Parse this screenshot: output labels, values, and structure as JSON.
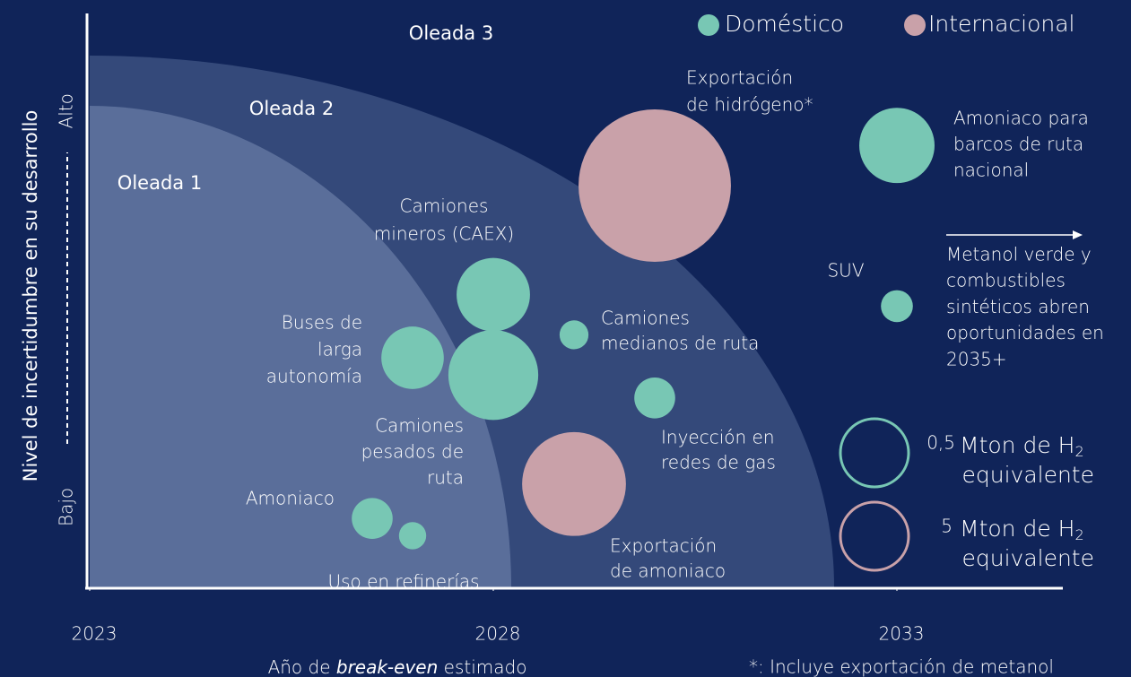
{
  "chart_data": {
    "type": "bubble",
    "waves": [
      "Oleada 1",
      "Oleada 2",
      "Oleada 3"
    ],
    "xlabel": [
      "Año de ",
      "break-even",
      " estimado"
    ],
    "ylabel": "Nivel de incertidumbre en su desarrollo",
    "xlim": [
      2023,
      2035.5
    ],
    "xticks": [
      2023,
      2028,
      2033
    ],
    "ylim": [
      0,
      1
    ],
    "yticks": [
      {
        "value": 0.14,
        "label": "Bajo"
      },
      {
        "value": 0.83,
        "label": "Alto"
      }
    ],
    "series": [
      {
        "name": "Doméstico",
        "color": "#78c7b4",
        "x": [
          2033,
          2033,
          2028,
          2027,
          2028,
          2029,
          2030,
          2026.5,
          2027
        ],
        "y": [
          0.77,
          0.49,
          0.51,
          0.4,
          0.37,
          0.44,
          0.33,
          0.12,
          0.09
        ],
        "sizes": [
          0.61,
          0.11,
          0.58,
          0.42,
          0.87,
          0.09,
          0.18,
          0.18,
          0.08
        ],
        "labels": [
          [
            "Amoniaco para",
            "barcos de ruta",
            "nacional"
          ],
          [
            "SUV"
          ],
          [
            "Camiones",
            "mineros (CAEX)"
          ],
          [
            "Buses de",
            "larga",
            "autonomía"
          ],
          [
            "Camiones",
            "pesados de",
            "ruta"
          ],
          [
            "Camiones",
            "medianos de ruta"
          ],
          [
            "Inyección en",
            "redes de gas"
          ],
          [
            "Amoniaco"
          ],
          [
            "Uso en refinerías"
          ]
        ]
      },
      {
        "name": "Internacional",
        "color": "#c9a1a9",
        "x": [
          2030,
          2029
        ],
        "y": [
          0.7,
          0.18
        ],
        "sizes": [
          25.0,
          11.6
        ],
        "labels": [
          [
            "Exportación",
            "de hidrógeno*"
          ],
          [
            "Exportación",
            "de amoniaco"
          ]
        ]
      }
    ],
    "size_legend": [
      {
        "value": 0.5,
        "label": "0,5",
        "series": 0
      },
      {
        "value": 5,
        "label": "5",
        "series": 1
      }
    ],
    "size_unit": [
      "Mton de H",
      "2",
      "equivalente"
    ],
    "annotation": [
      "Metanol verde y",
      "combustibles",
      "sintéticos abren",
      "oportunidades en",
      "2035+"
    ],
    "footnote": "*: Incluye exportación de metanol"
  }
}
